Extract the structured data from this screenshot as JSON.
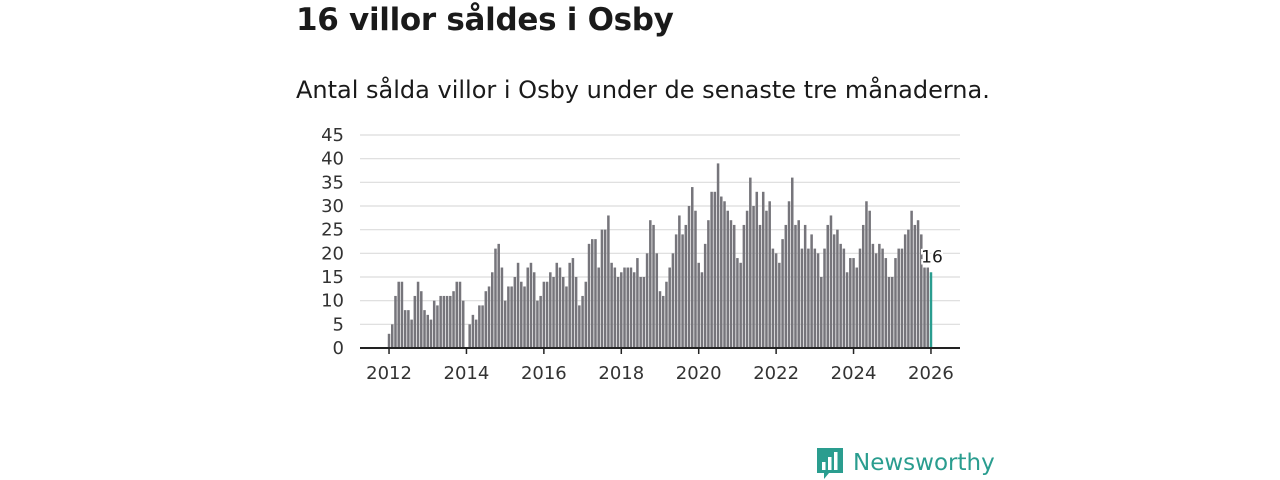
{
  "header": {
    "title": "16 villor såldes i Osby",
    "subtitle": "Antal sålda villor i Osby under de senaste tre månaderna."
  },
  "brand": {
    "name": "Newsworthy",
    "icon": "bar-chart-speech-icon",
    "color": "#2a9d8f"
  },
  "colors": {
    "bar": "#76757b",
    "highlight": "#2a9d8f",
    "grid": "#dcdcdc",
    "axis": "#222222"
  },
  "chart_data": {
    "type": "bar",
    "title": "16 villor såldes i Osby",
    "subtitle": "Antal sålda villor i Osby under de senaste tre månaderna.",
    "xlabel": "",
    "ylabel": "",
    "x_start": 2012.0,
    "x_step": 0.0833333,
    "xlim": [
      2011.25,
      2026.75
    ],
    "ylim": [
      0,
      45
    ],
    "yticks": [
      0,
      5,
      10,
      15,
      20,
      25,
      30,
      35,
      40,
      45
    ],
    "xticks": [
      2012,
      2014,
      2016,
      2018,
      2020,
      2022,
      2024,
      2026
    ],
    "grid": true,
    "values": [
      3,
      5,
      11,
      14,
      14,
      8,
      8,
      6,
      11,
      14,
      12,
      8,
      7,
      6,
      10,
      9,
      11,
      11,
      11,
      11,
      12,
      14,
      14,
      10,
      0,
      5,
      7,
      6,
      9,
      9,
      12,
      13,
      16,
      21,
      22,
      17,
      10,
      13,
      13,
      15,
      18,
      14,
      13,
      17,
      18,
      16,
      10,
      11,
      14,
      14,
      16,
      15,
      18,
      17,
      15,
      13,
      18,
      19,
      15,
      9,
      11,
      14,
      22,
      23,
      23,
      17,
      25,
      25,
      28,
      18,
      17,
      15,
      16,
      17,
      17,
      17,
      16,
      19,
      15,
      15,
      20,
      27,
      26,
      20,
      12,
      11,
      14,
      17,
      20,
      24,
      28,
      24,
      26,
      30,
      34,
      29,
      18,
      16,
      22,
      27,
      33,
      33,
      39,
      32,
      31,
      29,
      27,
      26,
      19,
      18,
      26,
      29,
      36,
      30,
      33,
      26,
      33,
      29,
      31,
      21,
      20,
      18,
      23,
      26,
      31,
      36,
      26,
      27,
      21,
      26,
      21,
      24,
      21,
      20,
      15,
      21,
      26,
      28,
      24,
      25,
      22,
      21,
      16,
      19,
      19,
      17,
      21,
      26,
      31,
      29,
      22,
      20,
      22,
      21,
      19,
      15,
      15,
      19,
      21,
      21,
      24,
      25,
      29,
      26,
      27,
      24,
      17,
      17,
      16
    ],
    "highlight_index": 168,
    "highlight_label": "16"
  }
}
